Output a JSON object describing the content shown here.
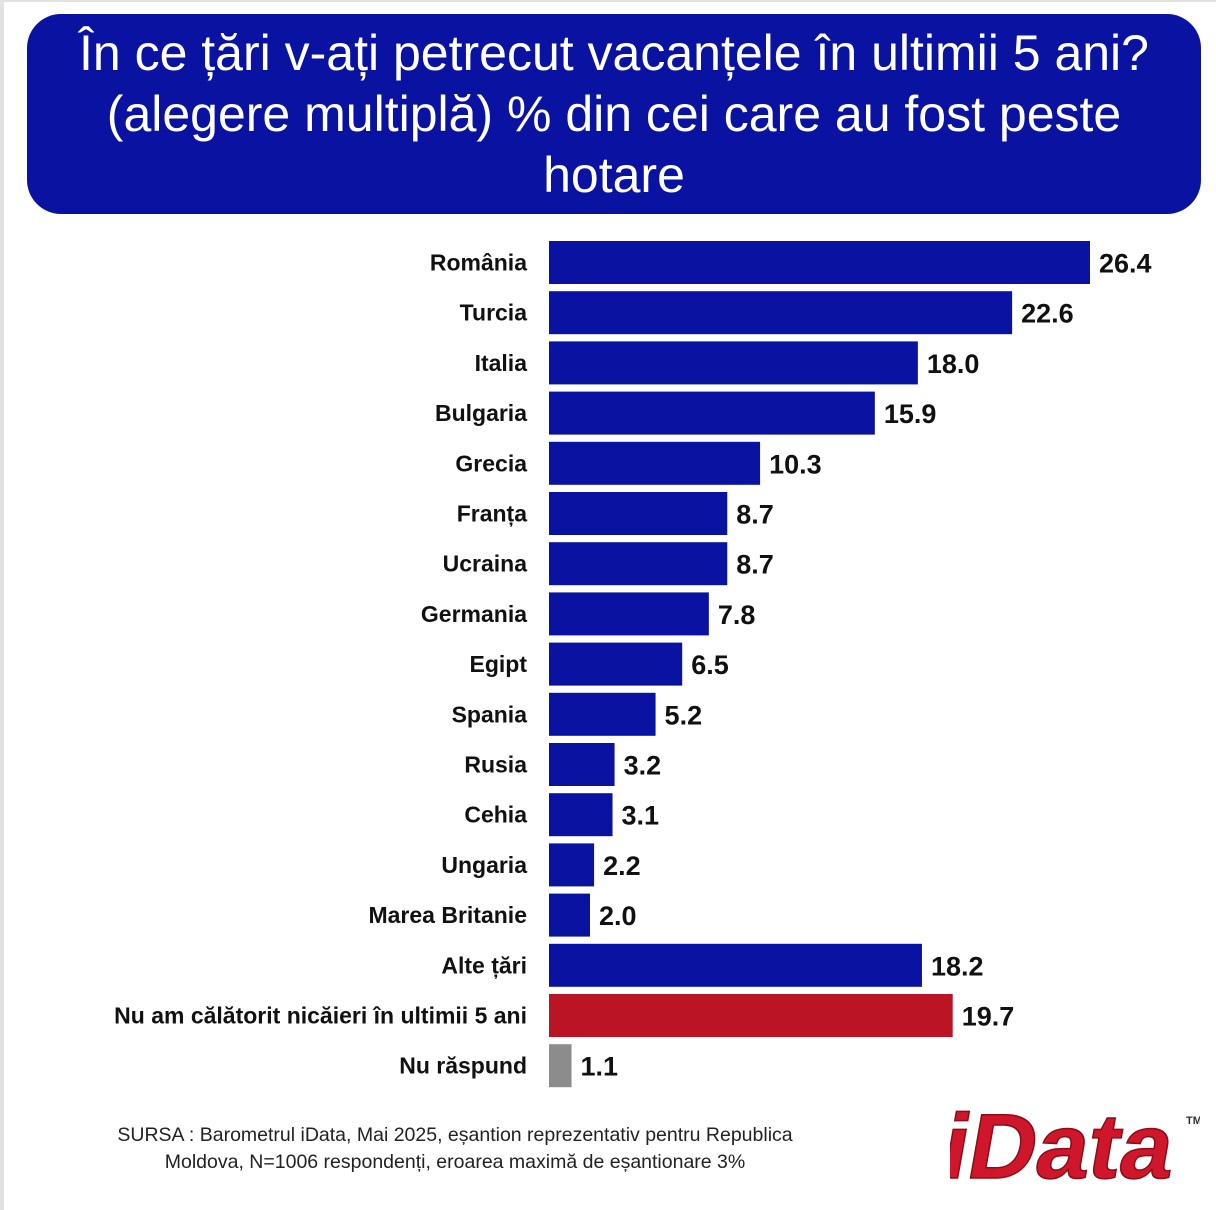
{
  "header": {
    "title": "În ce țări v-ați petrecut vacanțele în ultimii 5 ani? (alegere multiplă) % din cei care au fost peste hotare"
  },
  "chart_data": {
    "type": "bar",
    "orientation": "horizontal",
    "categories": [
      "România",
      "Turcia",
      "Italia",
      "Bulgaria",
      "Grecia",
      "Franța",
      "Ucraina",
      "Germania",
      "Egipt",
      "Spania",
      "Rusia",
      "Cehia",
      "Ungaria",
      "Marea Britanie",
      "Alte țări",
      "Nu am călătorit nicăieri în ultimii 5 ani",
      "Nu răspund"
    ],
    "values": [
      26.4,
      22.6,
      18.0,
      15.9,
      10.3,
      8.7,
      8.7,
      7.8,
      6.5,
      5.2,
      3.2,
      3.1,
      2.2,
      2.0,
      18.2,
      19.7,
      1.1
    ],
    "value_labels": [
      "26.4",
      "22.6",
      "18.0",
      "15.9",
      "10.3",
      "8.7",
      "8.7",
      "7.8",
      "6.5",
      "5.2",
      "3.2",
      "3.1",
      "2.2",
      "2.0",
      "18.2",
      "19.7",
      "1.1"
    ],
    "bar_colors": [
      "#0a13a1",
      "#0a13a1",
      "#0a13a1",
      "#0a13a1",
      "#0a13a1",
      "#0a13a1",
      "#0a13a1",
      "#0a13a1",
      "#0a13a1",
      "#0a13a1",
      "#0a13a1",
      "#0a13a1",
      "#0a13a1",
      "#0a13a1",
      "#0a13a1",
      "#bb1424",
      "#8c8c8c"
    ],
    "xlim": [
      0,
      26.4
    ],
    "grid": false,
    "legend": "none"
  },
  "footer": {
    "source_line1": "SURSA : Barometrul iData, Mai 2025, eșantion reprezentativ pentru Republica",
    "source_line2": "Moldova, N=1006 respondenți, eroarea maximă de eșantionare 3%"
  },
  "logo": {
    "text": "iData",
    "tm": "TM",
    "color": "#d0162a"
  }
}
